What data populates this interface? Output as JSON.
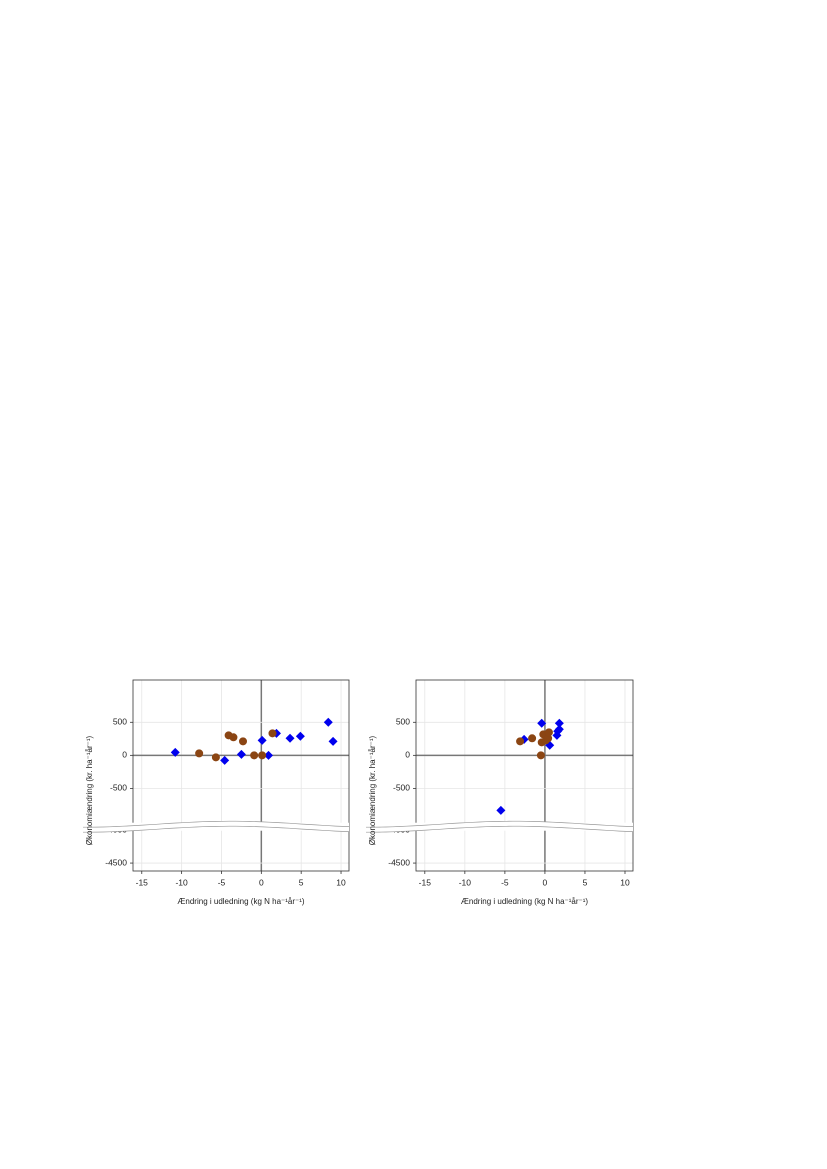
{
  "chart_data": [
    {
      "type": "scatter",
      "x_label": "Ændring i udledning (kg N ha⁻¹år⁻¹)",
      "y_label": "Økonomiændring (kr. ha⁻¹år⁻¹)",
      "xlim": [
        -16.1,
        11.0
      ],
      "xticks": [
        -15,
        -10,
        -5,
        0,
        5,
        10
      ],
      "ylim": [
        -4620,
        1140
      ],
      "y_break": [
        -3950,
        -1080
      ],
      "yticks": [
        500,
        0,
        -500,
        -4000,
        -4500
      ],
      "grid": true,
      "series": [
        {
          "color": "#0000ee",
          "marker": "diamond",
          "x": [
            -10.8,
            -4.6,
            -2.5,
            0.1,
            0.9,
            1.9,
            3.6,
            4.9,
            8.4,
            9.0
          ],
          "y": [
            45,
            -76,
            15,
            227,
            0,
            333,
            258,
            288,
            500,
            212
          ]
        },
        {
          "color": "#8b4513",
          "marker": "circle",
          "x": [
            -7.8,
            -5.7,
            -4.1,
            -3.5,
            -2.3,
            -0.9,
            0.1,
            1.4
          ],
          "y": [
            30,
            -30,
            303,
            273,
            212,
            0,
            0,
            333
          ]
        }
      ]
    },
    {
      "type": "scatter",
      "x_label": "Ændring i udledning (kg N ha⁻¹år⁻¹)",
      "y_label": "Økonomiændring (kr. ha⁻¹år⁻¹)",
      "xlim": [
        -16.1,
        11.0
      ],
      "xticks": [
        -15,
        -10,
        -5,
        0,
        5,
        10
      ],
      "ylim": [
        -4620,
        1140
      ],
      "y_break": [
        -3950,
        -1080
      ],
      "yticks": [
        500,
        0,
        -500,
        -4000,
        -4500
      ],
      "grid": true,
      "series": [
        {
          "color": "#0000ee",
          "marker": "diamond",
          "x": [
            -5.5,
            -2.6,
            -0.4,
            0.6,
            1.5,
            1.6,
            1.8,
            1.8,
            0.4
          ],
          "y": [
            -833,
            242,
            485,
            152,
            303,
            364,
            485,
            394,
            333
          ]
        },
        {
          "color": "#8b4513",
          "marker": "circle",
          "x": [
            -3.1,
            -1.6,
            -0.5,
            -0.4,
            -0.2,
            0.1,
            0.4,
            0.5
          ],
          "y": [
            212,
            258,
            0,
            197,
            318,
            227,
            258,
            348
          ]
        }
      ]
    }
  ]
}
